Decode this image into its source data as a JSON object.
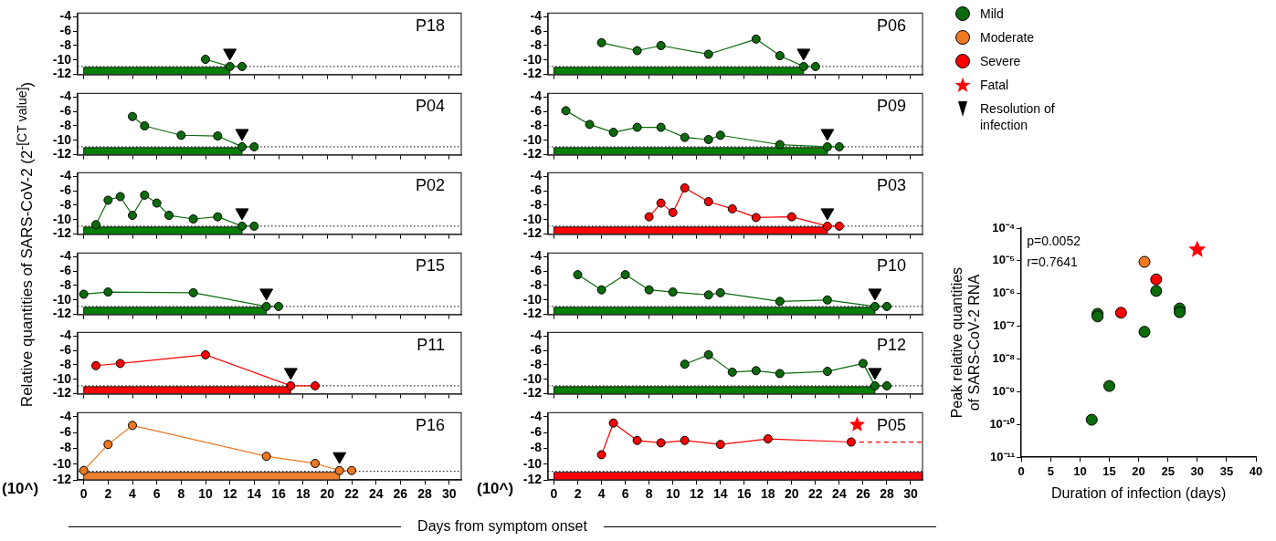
{
  "chart_data": [
    {
      "type": "line",
      "title": "P18",
      "ylabel": "Relative quantities of SARS-CoV-2 (2$^{-[CT value]}$)",
      "legend": "right",
      "xlim": [
        -0.5,
        31
      ],
      "xticks": [
        0,
        2,
        4,
        6,
        8,
        10,
        12,
        14,
        16,
        18,
        20,
        22,
        24,
        26,
        28,
        30
      ],
      "ylim": [
        -12,
        -3.5
      ],
      "yticks": [
        -4,
        -6,
        -8,
        -10,
        -12
      ],
      "tick_labels": "y",
      "marker": "circle",
      "ref_lines": [
        {
          "axis": "y",
          "value": -10.9,
          "line_style": "dotted",
          "color": "#000000"
        }
      ],
      "bands": [
        {
          "axis": "x",
          "from": 0,
          "to": 12,
          "color": "#008000"
        }
      ],
      "series": [
        {
          "x": [
            10,
            12,
            13
          ],
          "values": [
            -9.9,
            -10.9,
            -10.9
          ],
          "color": "#0b6b0b"
        },
        {
          "type": "scatter",
          "name": "Resolution of infection",
          "marker": "triangle",
          "color": "#000000",
          "x": [
            12
          ],
          "values": [
            -9.0
          ]
        }
      ]
    },
    {
      "type": "line",
      "title": "P04",
      "xlim": [
        -0.5,
        31
      ],
      "xticks": [
        0,
        2,
        4,
        6,
        8,
        10,
        12,
        14,
        16,
        18,
        20,
        22,
        24,
        26,
        28,
        30
      ],
      "ylim": [
        -12,
        -3.5
      ],
      "yticks": [
        -4,
        -6,
        -8,
        -10,
        -12
      ],
      "tick_labels": "y",
      "marker": "circle",
      "ref_lines": [
        {
          "axis": "y",
          "value": -10.9,
          "line_style": "dotted",
          "color": "#000000"
        }
      ],
      "bands": [
        {
          "axis": "x",
          "from": 0,
          "to": 13,
          "color": "#008000"
        }
      ],
      "series": [
        {
          "x": [
            4,
            5,
            8,
            11,
            13,
            14
          ],
          "values": [
            -6.7,
            -8.0,
            -9.3,
            -9.4,
            -10.9,
            -10.9
          ],
          "color": "#0b6b0b"
        },
        {
          "type": "scatter",
          "marker": "triangle",
          "color": "#000000",
          "x": [
            13
          ],
          "values": [
            -9.0
          ]
        }
      ]
    },
    {
      "type": "line",
      "title": "P02",
      "xlim": [
        -0.5,
        31
      ],
      "xticks": [
        0,
        2,
        4,
        6,
        8,
        10,
        12,
        14,
        16,
        18,
        20,
        22,
        24,
        26,
        28,
        30
      ],
      "ylim": [
        -12,
        -3.5
      ],
      "yticks": [
        -4,
        -6,
        -8,
        -10,
        -12
      ],
      "tick_labels": "y",
      "marker": "circle",
      "ref_lines": [
        {
          "axis": "y",
          "value": -10.9,
          "line_style": "dotted",
          "color": "#000000"
        }
      ],
      "bands": [
        {
          "axis": "x",
          "from": 0,
          "to": 13,
          "color": "#008000"
        }
      ],
      "series": [
        {
          "x": [
            1,
            2,
            3,
            4,
            5,
            6,
            7,
            9,
            11,
            13,
            14
          ],
          "values": [
            -10.7,
            -7.3,
            -6.8,
            -9.4,
            -6.6,
            -7.7,
            -9.4,
            -9.9,
            -9.6,
            -10.9,
            -10.9
          ],
          "color": "#0b6b0b"
        },
        {
          "type": "scatter",
          "marker": "triangle",
          "color": "#000000",
          "x": [
            13
          ],
          "values": [
            -9.0
          ]
        }
      ]
    },
    {
      "type": "line",
      "title": "P15",
      "xlim": [
        -0.5,
        31
      ],
      "xticks": [
        0,
        2,
        4,
        6,
        8,
        10,
        12,
        14,
        16,
        18,
        20,
        22,
        24,
        26,
        28,
        30
      ],
      "ylim": [
        -12,
        -3.5
      ],
      "yticks": [
        -4,
        -6,
        -8,
        -10,
        -12
      ],
      "tick_labels": "y",
      "marker": "circle",
      "ref_lines": [
        {
          "axis": "y",
          "value": -10.9,
          "line_style": "dotted",
          "color": "#000000"
        }
      ],
      "bands": [
        {
          "axis": "x",
          "from": 0,
          "to": 15,
          "color": "#008000"
        }
      ],
      "series": [
        {
          "x": [
            0,
            2,
            9,
            15,
            16
          ],
          "values": [
            -9.2,
            -8.9,
            -9.0,
            -10.9,
            -10.9
          ],
          "color": "#0b6b0b"
        },
        {
          "type": "scatter",
          "marker": "triangle",
          "color": "#000000",
          "x": [
            15
          ],
          "values": [
            -9.0
          ]
        }
      ]
    },
    {
      "type": "line",
      "title": "P11",
      "xlim": [
        -0.5,
        31
      ],
      "xticks": [
        0,
        2,
        4,
        6,
        8,
        10,
        12,
        14,
        16,
        18,
        20,
        22,
        24,
        26,
        28,
        30
      ],
      "ylim": [
        -12,
        -3.5
      ],
      "yticks": [
        -4,
        -6,
        -8,
        -10,
        -12
      ],
      "tick_labels": "y",
      "marker": "circle",
      "ref_lines": [
        {
          "axis": "y",
          "value": -10.9,
          "line_style": "dotted",
          "color": "#000000"
        }
      ],
      "bands": [
        {
          "axis": "x",
          "from": 0,
          "to": 17,
          "color": "#ff0000"
        }
      ],
      "series": [
        {
          "x": [
            1,
            3,
            10,
            17,
            19
          ],
          "values": [
            -8.1,
            -7.8,
            -6.6,
            -10.9,
            -10.9
          ],
          "color": "#ff0000"
        },
        {
          "type": "scatter",
          "marker": "triangle",
          "color": "#000000",
          "x": [
            17
          ],
          "values": [
            -9.0
          ]
        }
      ]
    },
    {
      "type": "line",
      "title": "P16",
      "xlabel": "Days from symptom onset",
      "annotations": [
        "(10^)"
      ],
      "xlim": [
        -0.5,
        31
      ],
      "xticks": [
        0,
        2,
        4,
        6,
        8,
        10,
        12,
        14,
        16,
        18,
        20,
        22,
        24,
        26,
        28,
        30
      ],
      "ylim": [
        -12,
        -3.5
      ],
      "yticks": [
        -4,
        -6,
        -8,
        -10,
        -12
      ],
      "marker": "circle",
      "ref_lines": [
        {
          "axis": "y",
          "value": -10.9,
          "line_style": "dotted",
          "color": "#000000"
        }
      ],
      "bands": [
        {
          "axis": "x",
          "from": 0,
          "to": 21,
          "color": "#f08030"
        }
      ],
      "series": [
        {
          "x": [
            0,
            2,
            4,
            15,
            19,
            21,
            22
          ],
          "values": [
            -10.8,
            -7.5,
            -5.1,
            -9.0,
            -9.9,
            -10.8,
            -10.8
          ],
          "color": "#f07820"
        },
        {
          "type": "scatter",
          "marker": "triangle",
          "color": "#000000",
          "x": [
            21
          ],
          "values": [
            -9.0
          ]
        }
      ]
    },
    {
      "type": "line",
      "title": "P06",
      "xlim": [
        -0.5,
        31
      ],
      "xticks": [
        0,
        2,
        4,
        6,
        8,
        10,
        12,
        14,
        16,
        18,
        20,
        22,
        24,
        26,
        28,
        30
      ],
      "ylim": [
        -12,
        -3.5
      ],
      "yticks": [
        -4,
        -6,
        -8,
        -10,
        -12
      ],
      "tick_labels": "y",
      "marker": "circle",
      "ref_lines": [
        {
          "axis": "y",
          "value": -10.9,
          "line_style": "dotted",
          "color": "#000000"
        }
      ],
      "bands": [
        {
          "axis": "x",
          "from": 0,
          "to": 21,
          "color": "#008000"
        }
      ],
      "series": [
        {
          "x": [
            4,
            7,
            9,
            13,
            17,
            19,
            21,
            22
          ],
          "values": [
            -7.6,
            -8.7,
            -8.0,
            -9.2,
            -7.1,
            -9.4,
            -10.9,
            -10.9
          ],
          "color": "#0b6b0b"
        },
        {
          "type": "scatter",
          "marker": "triangle",
          "color": "#000000",
          "x": [
            21
          ],
          "values": [
            -9.0
          ]
        }
      ]
    },
    {
      "type": "line",
      "title": "P09",
      "xlim": [
        -0.5,
        31
      ],
      "xticks": [
        0,
        2,
        4,
        6,
        8,
        10,
        12,
        14,
        16,
        18,
        20,
        22,
        24,
        26,
        28,
        30
      ],
      "ylim": [
        -12,
        -3.5
      ],
      "yticks": [
        -4,
        -6,
        -8,
        -10,
        -12
      ],
      "tick_labels": "y",
      "marker": "circle",
      "ref_lines": [
        {
          "axis": "y",
          "value": -10.9,
          "line_style": "dotted",
          "color": "#000000"
        }
      ],
      "bands": [
        {
          "axis": "x",
          "from": 0,
          "to": 23,
          "color": "#008000"
        }
      ],
      "series": [
        {
          "x": [
            1,
            3,
            5,
            7,
            9,
            11,
            13,
            14,
            19,
            23,
            24
          ],
          "values": [
            -5.9,
            -7.8,
            -8.9,
            -8.2,
            -8.2,
            -9.6,
            -9.9,
            -9.3,
            -10.6,
            -10.9,
            -10.9
          ],
          "color": "#0b6b0b"
        },
        {
          "type": "scatter",
          "marker": "triangle",
          "color": "#000000",
          "x": [
            23
          ],
          "values": [
            -9.0
          ]
        }
      ]
    },
    {
      "type": "line",
      "title": "P03",
      "xlim": [
        -0.5,
        31
      ],
      "xticks": [
        0,
        2,
        4,
        6,
        8,
        10,
        12,
        14,
        16,
        18,
        20,
        22,
        24,
        26,
        28,
        30
      ],
      "ylim": [
        -12,
        -3.5
      ],
      "yticks": [
        -4,
        -6,
        -8,
        -10,
        -12
      ],
      "tick_labels": "y",
      "marker": "circle",
      "ref_lines": [
        {
          "axis": "y",
          "value": -10.9,
          "line_style": "dotted",
          "color": "#000000"
        }
      ],
      "bands": [
        {
          "axis": "x",
          "from": 0,
          "to": 23,
          "color": "#ff0000"
        }
      ],
      "series": [
        {
          "x": [
            8,
            9,
            10,
            11,
            13,
            15,
            17,
            20,
            23,
            24
          ],
          "values": [
            -9.6,
            -7.7,
            -9.0,
            -5.6,
            -7.5,
            -8.5,
            -9.7,
            -9.6,
            -10.9,
            -10.9
          ],
          "color": "#ff0000"
        },
        {
          "type": "scatter",
          "marker": "triangle",
          "color": "#000000",
          "x": [
            23
          ],
          "values": [
            -9.0
          ]
        }
      ]
    },
    {
      "type": "line",
      "title": "P10",
      "xlim": [
        -0.5,
        31
      ],
      "xticks": [
        0,
        2,
        4,
        6,
        8,
        10,
        12,
        14,
        16,
        18,
        20,
        22,
        24,
        26,
        28,
        30
      ],
      "ylim": [
        -12,
        -3.5
      ],
      "yticks": [
        -4,
        -6,
        -8,
        -10,
        -12
      ],
      "tick_labels": "y",
      "marker": "circle",
      "ref_lines": [
        {
          "axis": "y",
          "value": -10.9,
          "line_style": "dotted",
          "color": "#000000"
        }
      ],
      "bands": [
        {
          "axis": "x",
          "from": 0,
          "to": 27,
          "color": "#008000"
        }
      ],
      "series": [
        {
          "x": [
            2,
            4,
            6,
            8,
            10,
            13,
            14,
            19,
            23,
            27,
            28
          ],
          "values": [
            -6.5,
            -8.6,
            -6.5,
            -8.6,
            -8.9,
            -9.3,
            -9.0,
            -10.2,
            -10.0,
            -10.9,
            -10.9
          ],
          "color": "#0b6b0b"
        },
        {
          "type": "scatter",
          "marker": "triangle",
          "color": "#000000",
          "x": [
            27
          ],
          "values": [
            -9.0
          ]
        }
      ]
    },
    {
      "type": "line",
      "title": "P12",
      "xlim": [
        -0.5,
        31
      ],
      "xticks": [
        0,
        2,
        4,
        6,
        8,
        10,
        12,
        14,
        16,
        18,
        20,
        22,
        24,
        26,
        28,
        30
      ],
      "ylim": [
        -12,
        -3.5
      ],
      "yticks": [
        -4,
        -6,
        -8,
        -10,
        -12
      ],
      "tick_labels": "y",
      "marker": "circle",
      "ref_lines": [
        {
          "axis": "y",
          "value": -10.9,
          "line_style": "dotted",
          "color": "#000000"
        }
      ],
      "bands": [
        {
          "axis": "x",
          "from": 0,
          "to": 27,
          "color": "#008000"
        }
      ],
      "series": [
        {
          "x": [
            11,
            13,
            15,
            17,
            19,
            23,
            26,
            27,
            28
          ],
          "values": [
            -7.9,
            -6.6,
            -9.0,
            -8.8,
            -9.2,
            -8.9,
            -7.8,
            -10.9,
            -10.9
          ],
          "color": "#0b6b0b"
        },
        {
          "type": "scatter",
          "marker": "triangle",
          "color": "#000000",
          "x": [
            27
          ],
          "values": [
            -9.0
          ]
        }
      ]
    },
    {
      "type": "line",
      "title": "P05",
      "annotations": [
        "(10^)"
      ],
      "xlim": [
        -0.5,
        31
      ],
      "xticks": [
        0,
        2,
        4,
        6,
        8,
        10,
        12,
        14,
        16,
        18,
        20,
        22,
        24,
        26,
        28,
        30
      ],
      "ylim": [
        -12,
        -3.5
      ],
      "yticks": [
        -4,
        -6,
        -8,
        -10,
        -12
      ],
      "marker": "circle",
      "ref_lines": [
        {
          "axis": "y",
          "value": -10.9,
          "line_style": "dotted",
          "color": "#000000"
        }
      ],
      "bands": [
        {
          "axis": "x",
          "from": 0,
          "to": 31,
          "color": "#ff0000"
        }
      ],
      "series": [
        {
          "x": [
            4,
            5,
            7,
            9,
            11,
            14,
            18,
            25
          ],
          "values": [
            -8.8,
            -4.8,
            -7.0,
            -7.3,
            -7.0,
            -7.5,
            -6.8,
            -7.2
          ],
          "color": "#ff0000"
        },
        {
          "x": [
            25,
            31
          ],
          "values": [
            -7.2,
            -7.2
          ],
          "color": "#ff0000",
          "line_style": "dashed",
          "marker": "none"
        },
        {
          "type": "scatter",
          "marker": "star",
          "color": "#ff0000",
          "x": [
            25.5
          ],
          "values": [
            -5.0
          ]
        }
      ]
    },
    {
      "type": "scatter",
      "xlabel": "Duration of infection (days)",
      "ylabel": "Peak relative quantities of SARS-CoV-2 RNA",
      "annotations": [
        "p=0.0052",
        "r=0.7641"
      ],
      "legend": "top",
      "log": "y",
      "marker": "circle",
      "xlim": [
        0,
        40
      ],
      "xticks": [
        0,
        5,
        10,
        15,
        20,
        25,
        30,
        35,
        40
      ],
      "ylim": [
        1e-11,
        0.0001
      ],
      "yticks": [
        {
          "value": 1e-11,
          "label": "10⁻¹¹"
        },
        {
          "value": 1e-10,
          "label": "10⁻¹⁰"
        },
        {
          "value": 1e-09,
          "label": "10⁻⁹"
        },
        {
          "value": 1e-08,
          "label": "10⁻⁸"
        },
        {
          "value": 1e-07,
          "label": "10⁻⁷"
        },
        {
          "value": 1e-06,
          "label": "10⁻⁶"
        },
        {
          "value": 1e-05,
          "label": "10⁻⁵"
        },
        {
          "value": 0.0001,
          "label": "10⁻⁴"
        }
      ],
      "series": [
        {
          "name": "Mild",
          "color": "#0b6b0b",
          "x": [
            12,
            13,
            13,
            15,
            21,
            23,
            27,
            27
          ],
          "values": [
            1.4e-10,
            2.4e-07,
            2e-07,
            1.5e-09,
            6.8e-08,
            1.2e-06,
            3.5e-07,
            2.7e-07
          ]
        },
        {
          "name": "Moderate",
          "color": "#f07820",
          "x": [
            21
          ],
          "values": [
            9.3e-06
          ]
        },
        {
          "name": "Severe",
          "color": "#ff0000",
          "x": [
            17,
            23
          ],
          "values": [
            2.6e-07,
            2.7e-06
          ]
        },
        {
          "name": "Fatal",
          "color": "#ff0000",
          "marker": "star",
          "x": [
            30
          ],
          "values": [
            2.2e-05
          ]
        }
      ]
    }
  ]
}
